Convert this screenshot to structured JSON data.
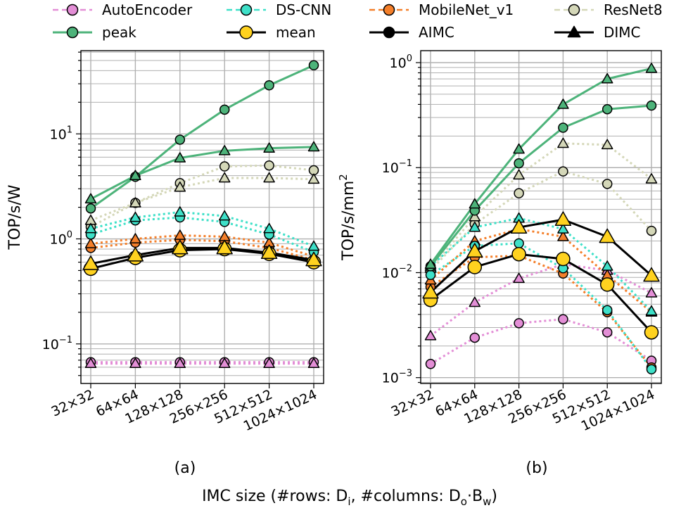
{
  "legend": {
    "entries": [
      {
        "label": "AutoEncoder",
        "kind": "workload",
        "color": "#e38ed6",
        "marker": "circle",
        "dash": "dashed"
      },
      {
        "label": "DS-CNN",
        "kind": "workload",
        "color": "#3ee0c8",
        "marker": "circle",
        "dash": "dashed"
      },
      {
        "label": "MobileNet_v1",
        "kind": "workload",
        "color": "#f47f2a",
        "marker": "circle",
        "dash": "dashed"
      },
      {
        "label": "ResNet8",
        "kind": "workload",
        "color": "#d4d7b8",
        "marker": "circle",
        "dash": "dashed"
      },
      {
        "label": "peak",
        "kind": "peak",
        "color": "#4db37a",
        "marker": "circle",
        "dash": "solid"
      },
      {
        "label": "mean",
        "kind": "mean",
        "color": "#000000",
        "marker": "circle",
        "dash": "solid"
      },
      {
        "label": "AIMC",
        "kind": "arch",
        "color": "#000000",
        "marker": "circle",
        "dash": "solid"
      },
      {
        "label": "DIMC",
        "kind": "arch",
        "color": "#000000",
        "marker": "triangle",
        "dash": "solid"
      }
    ]
  },
  "colors": {
    "AutoEncoder": "#e38ed6",
    "DS-CNN": "#3ee0c8",
    "MobileNet_v1": "#f47f2a",
    "ResNet8": "#d4d7b8",
    "peak": "#4db37a",
    "mean_line": "#000000",
    "mean_marker": "#ffd21f",
    "grid": "#b0b0b0"
  },
  "xlabel": "IMC size (#rows: D",
  "xlabel_parts": {
    "main": "IMC size (#rows: D",
    "sub_i": "i",
    "mid": ", #columns: D",
    "sub_o": "o",
    "dot": "·B",
    "sub_w": "w",
    "end": ")"
  },
  "chart_data": [
    {
      "type": "line",
      "panel_label": "(a)",
      "yscale": "log",
      "ylabel": "TOP/s/W",
      "ylim": [
        0.042,
        62
      ],
      "yticks": [
        {
          "value": 0.1,
          "base": "10",
          "exp": "−1"
        },
        {
          "value": 1,
          "label": "10",
          "exp": "0"
        },
        {
          "value": 10,
          "base": "10",
          "exp": "1"
        }
      ],
      "categories": [
        "32×32",
        "64×64",
        "128×128",
        "256×256",
        "512×512",
        "1024×1024"
      ],
      "grid": true,
      "series": [
        {
          "name": "AutoEncoder",
          "arch": "AIMC",
          "values": [
            0.067,
            0.067,
            0.067,
            0.067,
            0.067,
            0.067
          ]
        },
        {
          "name": "AutoEncoder",
          "arch": "DIMC",
          "values": [
            0.065,
            0.065,
            0.065,
            0.065,
            0.065,
            0.065
          ]
        },
        {
          "name": "DS-CNN",
          "arch": "AIMC",
          "values": [
            1.1,
            1.5,
            1.6,
            1.45,
            1.1,
            0.75
          ]
        },
        {
          "name": "DS-CNN",
          "arch": "DIMC",
          "values": [
            1.25,
            1.6,
            1.8,
            1.65,
            1.25,
            0.85
          ]
        },
        {
          "name": "MobileNet_v1",
          "arch": "AIMC",
          "values": [
            0.82,
            0.92,
            0.98,
            0.95,
            0.82,
            0.63
          ]
        },
        {
          "name": "MobileNet_v1",
          "arch": "DIMC",
          "values": [
            0.9,
            1.0,
            1.08,
            1.05,
            0.92,
            0.68
          ]
        },
        {
          "name": "ResNet8",
          "arch": "AIMC",
          "values": [
            1.3,
            2.2,
            3.4,
            4.9,
            5.0,
            4.5
          ]
        },
        {
          "name": "ResNet8",
          "arch": "DIMC",
          "values": [
            1.5,
            2.2,
            3.1,
            3.8,
            3.8,
            3.7
          ]
        },
        {
          "name": "peak",
          "arch": "AIMC",
          "values": [
            1.95,
            3.9,
            8.8,
            17.0,
            29.0,
            45.0
          ]
        },
        {
          "name": "peak",
          "arch": "DIMC",
          "values": [
            2.4,
            4.0,
            5.9,
            6.9,
            7.3,
            7.5
          ]
        },
        {
          "name": "mean",
          "arch": "AIMC",
          "values": [
            0.52,
            0.66,
            0.78,
            0.8,
            0.72,
            0.6
          ]
        },
        {
          "name": "mean",
          "arch": "DIMC",
          "values": [
            0.58,
            0.7,
            0.82,
            0.82,
            0.74,
            0.63
          ]
        }
      ]
    },
    {
      "type": "line",
      "panel_label": "(b)",
      "yscale": "log",
      "ylabel": "TOP/s/mm",
      "ylabel_sup": "2",
      "ylim": [
        0.00088,
        1.3
      ],
      "yticks": [
        {
          "value": 0.001,
          "base": "10",
          "exp": "−3"
        },
        {
          "value": 0.01,
          "base": "10",
          "exp": "−2"
        },
        {
          "value": 0.1,
          "base": "10",
          "exp": "−1"
        },
        {
          "value": 1,
          "base": "10",
          "exp": "0"
        }
      ],
      "categories": [
        "32×32",
        "64×64",
        "128×128",
        "256×256",
        "512×512",
        "1024×1024"
      ],
      "grid": true,
      "series": [
        {
          "name": "AutoEncoder",
          "arch": "AIMC",
          "values": [
            0.00135,
            0.0024,
            0.0033,
            0.0036,
            0.0027,
            0.00145
          ]
        },
        {
          "name": "AutoEncoder",
          "arch": "DIMC",
          "values": [
            0.0025,
            0.0052,
            0.0088,
            0.012,
            0.0105,
            0.0064
          ]
        },
        {
          "name": "DS-CNN",
          "arch": "AIMC",
          "values": [
            0.0095,
            0.018,
            0.019,
            0.011,
            0.0044,
            0.0012
          ]
        },
        {
          "name": "DS-CNN",
          "arch": "DIMC",
          "values": [
            0.0115,
            0.027,
            0.033,
            0.026,
            0.0115,
            0.0043
          ]
        },
        {
          "name": "MobileNet_v1",
          "arch": "AIMC",
          "values": [
            0.0073,
            0.014,
            0.0145,
            0.0098,
            0.0042,
            0.00125
          ]
        },
        {
          "name": "MobileNet_v1",
          "arch": "DIMC",
          "values": [
            0.0085,
            0.02,
            0.026,
            0.022,
            0.0095,
            0.0042
          ]
        },
        {
          "name": "ResNet8",
          "arch": "AIMC",
          "values": [
            0.0105,
            0.029,
            0.057,
            0.092,
            0.07,
            0.025
          ]
        },
        {
          "name": "ResNet8",
          "arch": "DIMC",
          "values": [
            0.011,
            0.034,
            0.085,
            0.17,
            0.165,
            0.078
          ]
        },
        {
          "name": "peak",
          "arch": "AIMC",
          "values": [
            0.0115,
            0.039,
            0.11,
            0.24,
            0.36,
            0.39
          ]
        },
        {
          "name": "peak",
          "arch": "DIMC",
          "values": [
            0.012,
            0.045,
            0.15,
            0.4,
            0.7,
            0.88
          ]
        },
        {
          "name": "mean",
          "arch": "AIMC",
          "values": [
            0.0055,
            0.0113,
            0.015,
            0.0135,
            0.0077,
            0.0027
          ]
        },
        {
          "name": "mean",
          "arch": "DIMC",
          "values": [
            0.0065,
            0.016,
            0.027,
            0.032,
            0.022,
            0.0094
          ]
        }
      ]
    }
  ]
}
